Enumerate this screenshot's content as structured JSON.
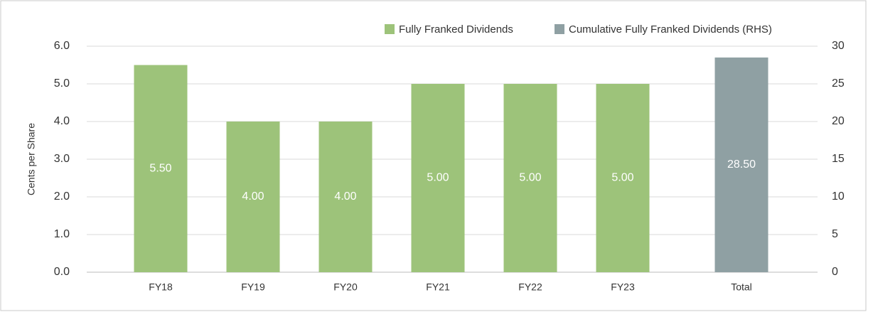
{
  "chart_data": {
    "type": "bar",
    "y_label": "Cents per Share",
    "categories": [
      "FY18",
      "FY19",
      "FY20",
      "FY21",
      "FY22",
      "FY23",
      "Total"
    ],
    "series": [
      {
        "name": "Fully Franked Dividends",
        "color": "#9dc37a",
        "values": [
          5.5,
          4,
          4,
          5,
          5,
          5,
          null
        ],
        "value_labels": [
          "5.50",
          "4.00",
          "4.00",
          "5.00",
          "5.00",
          "5.00",
          null
        ]
      },
      {
        "name": "Cumulative Fully Franked Dividends (RHS)",
        "color": "#8fa0a3",
        "axis": "y2",
        "values": [
          null,
          null,
          null,
          null,
          null,
          null,
          28.5
        ],
        "value_labels": [
          null,
          null,
          null,
          null,
          null,
          null,
          "28.50"
        ]
      }
    ],
    "ylim": [
      0,
      6
    ],
    "yticks": [
      {
        "value": 0,
        "label": "0.0"
      },
      {
        "value": 1,
        "label": "1.0"
      },
      {
        "value": 2,
        "label": "2.0"
      },
      {
        "value": 3,
        "label": "3.0"
      },
      {
        "value": 4,
        "label": "4.0"
      },
      {
        "value": 5,
        "label": "5.0"
      },
      {
        "value": 6,
        "label": "6.0"
      }
    ],
    "y2lim": [
      0,
      30
    ],
    "y2ticks": [
      0,
      5,
      10,
      15,
      20,
      25,
      30
    ],
    "grid": true,
    "legend": "top-right"
  }
}
